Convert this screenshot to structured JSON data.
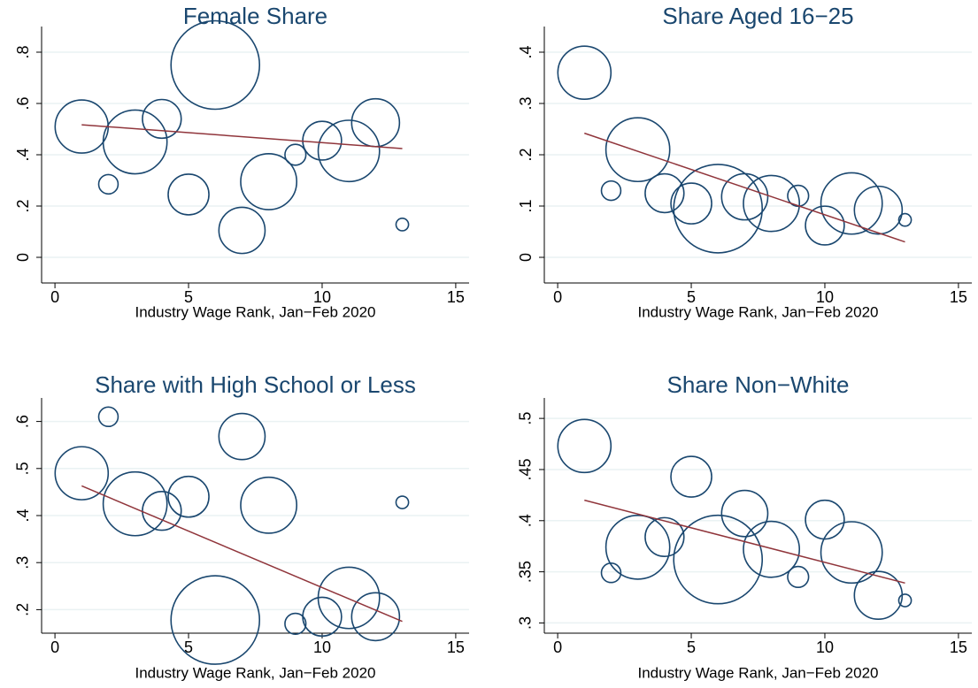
{
  "chart_data": [
    {
      "type": "bubble",
      "title": "Female Share",
      "xlabel": "Industry Wage Rank, Jan−Feb 2020",
      "x": [
        1,
        2,
        3,
        4,
        5,
        6,
        7,
        8,
        9,
        10,
        11,
        12,
        13
      ],
      "values": [
        0.51,
        0.285,
        0.45,
        0.54,
        0.245,
        0.75,
        0.105,
        0.295,
        0.4,
        0.455,
        0.415,
        0.525,
        0.128
      ],
      "sizes": [
        9,
        1.2,
        13,
        4.8,
        5.3,
        25,
        6.8,
        10,
        1.4,
        4.8,
        12,
        7.3,
        0.5
      ],
      "fit": {
        "x": [
          1,
          13
        ],
        "values": [
          0.517,
          0.424
        ]
      },
      "xlim": [
        -0.5,
        15.5
      ],
      "ylim": [
        -0.1,
        0.9
      ],
      "xticks": [
        0,
        5,
        10,
        15
      ],
      "yticks": [
        0,
        {
          "value": 0.2,
          "label": ".2"
        },
        {
          "value": 0.4,
          "label": ".4"
        },
        {
          "value": 0.6,
          "label": ".6"
        },
        {
          "value": 0.8,
          "label": ".8"
        }
      ],
      "color": "#1a476f",
      "fit_color": "#90353b",
      "grid": true
    },
    {
      "type": "bubble",
      "title": "Share Aged 16−25",
      "xlabel": "Industry Wage Rank, Jan−Feb 2020",
      "x": [
        1,
        2,
        3,
        4,
        5,
        6,
        7,
        8,
        9,
        10,
        11,
        12,
        13
      ],
      "values": [
        0.36,
        0.13,
        0.21,
        0.125,
        0.105,
        0.095,
        0.118,
        0.105,
        0.12,
        0.062,
        0.105,
        0.092,
        0.073
      ],
      "sizes": [
        9,
        1.2,
        13,
        4.8,
        5.3,
        25,
        6.8,
        10,
        1.4,
        4.8,
        12,
        7.3,
        0.5
      ],
      "fit": {
        "x": [
          1,
          13
        ],
        "values": [
          0.242,
          0.03
        ]
      },
      "xlim": [
        -0.5,
        15.5
      ],
      "ylim": [
        -0.05,
        0.45
      ],
      "xticks": [
        0,
        5,
        10,
        15
      ],
      "yticks": [
        0,
        {
          "value": 0.1,
          "label": ".1"
        },
        {
          "value": 0.2,
          "label": ".2"
        },
        {
          "value": 0.3,
          "label": ".3"
        },
        {
          "value": 0.4,
          "label": ".4"
        }
      ],
      "color": "#1a476f",
      "fit_color": "#90353b",
      "grid": true
    },
    {
      "type": "bubble",
      "title": "Share with High School or Less",
      "xlabel": "Industry Wage Rank, Jan−Feb 2020",
      "x": [
        1,
        2,
        3,
        4,
        5,
        6,
        7,
        8,
        9,
        10,
        11,
        12,
        13
      ],
      "values": [
        0.49,
        0.61,
        0.425,
        0.41,
        0.44,
        0.178,
        0.568,
        0.422,
        0.17,
        0.185,
        0.225,
        0.185,
        0.428
      ],
      "sizes": [
        9,
        1.2,
        13,
        4.8,
        5.3,
        25,
        6.8,
        10,
        1.4,
        4.8,
        12,
        7.3,
        0.5
      ],
      "fit": {
        "x": [
          1,
          13
        ],
        "values": [
          0.463,
          0.175
        ]
      },
      "xlim": [
        -0.5,
        15.5
      ],
      "ylim": [
        0.15,
        0.65
      ],
      "xticks": [
        0,
        5,
        10,
        15
      ],
      "yticks": [
        {
          "value": 0.2,
          "label": ".2"
        },
        {
          "value": 0.3,
          "label": ".3"
        },
        {
          "value": 0.4,
          "label": ".4"
        },
        {
          "value": 0.5,
          "label": ".5"
        },
        {
          "value": 0.6,
          "label": ".6"
        }
      ],
      "color": "#1a476f",
      "fit_color": "#90353b",
      "grid": true
    },
    {
      "type": "bubble",
      "title": "Share Non−White",
      "xlabel": "Industry Wage Rank, Jan−Feb 2020",
      "x": [
        1,
        2,
        3,
        4,
        5,
        6,
        7,
        8,
        9,
        10,
        11,
        12,
        13
      ],
      "values": [
        0.473,
        0.349,
        0.374,
        0.384,
        0.443,
        0.362,
        0.407,
        0.372,
        0.345,
        0.401,
        0.369,
        0.327,
        0.322
      ],
      "sizes": [
        9,
        1.2,
        13,
        4.8,
        5.3,
        25,
        6.8,
        10,
        1.4,
        4.8,
        12,
        7.3,
        0.5
      ],
      "fit": {
        "x": [
          1,
          13
        ],
        "values": [
          0.42,
          0.339
        ]
      },
      "xlim": [
        -0.5,
        15.5
      ],
      "ylim": [
        0.29,
        0.52
      ],
      "xticks": [
        0,
        5,
        10,
        15
      ],
      "yticks": [
        {
          "value": 0.3,
          "label": ".3"
        },
        {
          "value": 0.35,
          "label": ".35"
        },
        {
          "value": 0.4,
          "label": ".4"
        },
        {
          "value": 0.45,
          "label": ".45"
        },
        {
          "value": 0.5,
          "label": ".5"
        }
      ],
      "color": "#1a476f",
      "fit_color": "#90353b",
      "grid": true
    }
  ]
}
